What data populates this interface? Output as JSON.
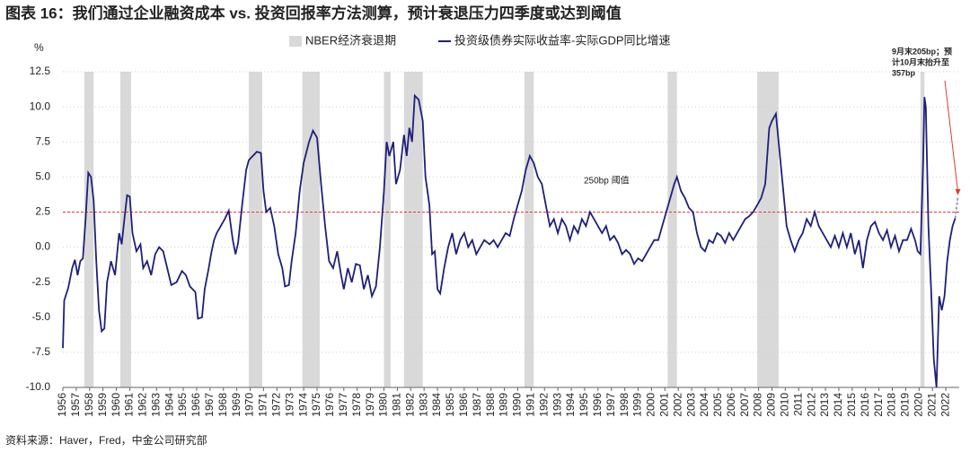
{
  "chart_data": {
    "type": "line",
    "title": "图表 16：我们通过企业融资成本 vs. 投资回报率方法测算，预计衰退压力四季度或达到阈值",
    "y_unit": "%",
    "source": "资料来源：Haver，Fred，中金公司研究部",
    "recession_name": "NBER经济衰退期",
    "recession_color": "#d9d9d9",
    "recessions": [
      [
        1957.6,
        1958.3
      ],
      [
        1960.3,
        1961.1
      ],
      [
        1969.9,
        1970.9
      ],
      [
        1973.9,
        1975.2
      ],
      [
        1980.0,
        1980.5
      ],
      [
        1981.5,
        1982.9
      ],
      [
        1990.5,
        1991.2
      ],
      [
        2001.2,
        2001.9
      ],
      [
        2007.9,
        2009.5
      ],
      [
        2020.1,
        2020.4
      ]
    ],
    "threshold": {
      "value": 2.5,
      "label": "250bp 阈值",
      "color": "#e03c31"
    },
    "annotation": [
      "9月末205bp；预",
      "计10月末抬升至",
      "357bp"
    ],
    "projection": {
      "x": [
        2022.7,
        2022.9
      ],
      "values": [
        2.05,
        3.57
      ],
      "color": "#9a9ab8"
    },
    "xlim": [
      1956,
      2023
    ],
    "xticks": [
      1956,
      1957,
      1958,
      1959,
      1960,
      1961,
      1962,
      1963,
      1964,
      1965,
      1966,
      1967,
      1968,
      1969,
      1970,
      1971,
      1972,
      1973,
      1974,
      1975,
      1976,
      1977,
      1978,
      1979,
      1980,
      1981,
      1982,
      1983,
      1984,
      1985,
      1986,
      1987,
      1988,
      1989,
      1990,
      1991,
      1992,
      1993,
      1994,
      1995,
      1996,
      1997,
      1998,
      1999,
      2000,
      2001,
      2002,
      2003,
      2004,
      2005,
      2006,
      2007,
      2008,
      2009,
      2010,
      2011,
      2012,
      2013,
      2014,
      2015,
      2016,
      2017,
      2018,
      2019,
      2020,
      2021,
      2022
    ],
    "ylim": [
      -10,
      12.5
    ],
    "yticks": [
      12.5,
      {
        "value": 10,
        "label": "10.0"
      },
      7.5,
      {
        "value": 5,
        "label": "5.0"
      },
      2.5,
      {
        "value": 0,
        "label": "0.0"
      },
      -2.5,
      {
        "value": -5,
        "label": "-5.0"
      },
      -7.5,
      {
        "value": -10,
        "label": "-10.0"
      }
    ],
    "grid": true,
    "series": [
      {
        "name": "投资级债券实际收益率-实际GDP同比增速",
        "color": "#1f1f7a",
        "x": [
          1956.0,
          1956.1,
          1956.4,
          1956.7,
          1956.9,
          1957.1,
          1957.3,
          1957.5,
          1957.7,
          1957.9,
          1958.1,
          1958.3,
          1958.5,
          1958.7,
          1958.9,
          1959.1,
          1959.3,
          1959.6,
          1959.9,
          1960.2,
          1960.4,
          1960.6,
          1960.8,
          1961.0,
          1961.2,
          1961.5,
          1961.8,
          1962.0,
          1962.3,
          1962.6,
          1962.9,
          1963.2,
          1963.5,
          1963.8,
          1964.1,
          1964.5,
          1964.9,
          1965.2,
          1965.5,
          1965.9,
          1966.1,
          1966.4,
          1966.6,
          1966.9,
          1967.1,
          1967.3,
          1967.5,
          1967.8,
          1968.1,
          1968.4,
          1968.7,
          1968.9,
          1969.1,
          1969.4,
          1969.7,
          1969.9,
          1970.2,
          1970.5,
          1970.8,
          1971.0,
          1971.2,
          1971.5,
          1971.8,
          1972.1,
          1972.4,
          1972.6,
          1972.9,
          1973.1,
          1973.4,
          1973.7,
          1974.0,
          1974.4,
          1974.7,
          1975.0,
          1975.3,
          1975.6,
          1975.9,
          1976.2,
          1976.5,
          1976.8,
          1977.0,
          1977.3,
          1977.6,
          1977.9,
          1978.2,
          1978.5,
          1978.8,
          1979.1,
          1979.4,
          1979.7,
          1980.0,
          1980.2,
          1980.4,
          1980.7,
          1980.9,
          1981.2,
          1981.5,
          1981.7,
          1981.9,
          1982.1,
          1982.3,
          1982.6,
          1982.9,
          1983.1,
          1983.4,
          1983.6,
          1983.8,
          1984.0,
          1984.2,
          1984.5,
          1984.8,
          1985.1,
          1985.4,
          1985.7,
          1986.0,
          1986.3,
          1986.6,
          1986.9,
          1987.2,
          1987.5,
          1987.9,
          1988.2,
          1988.5,
          1988.8,
          1989.1,
          1989.4,
          1989.7,
          1990.0,
          1990.3,
          1990.6,
          1990.9,
          1991.2,
          1991.5,
          1991.8,
          1992.1,
          1992.4,
          1992.7,
          1993.0,
          1993.3,
          1993.6,
          1993.9,
          1994.2,
          1994.5,
          1994.8,
          1995.1,
          1995.4,
          1995.7,
          1996.0,
          1996.3,
          1996.6,
          1996.9,
          1997.2,
          1997.5,
          1997.8,
          1998.1,
          1998.4,
          1998.7,
          1999.0,
          1999.3,
          1999.6,
          1999.9,
          2000.2,
          2000.5,
          2000.8,
          2001.1,
          2001.4,
          2001.7,
          2001.9,
          2002.2,
          2002.5,
          2002.8,
          2003.1,
          2003.4,
          2003.7,
          2004.0,
          2004.3,
          2004.6,
          2004.9,
          2005.2,
          2005.5,
          2005.8,
          2006.1,
          2006.4,
          2006.7,
          2007.0,
          2007.3,
          2007.6,
          2007.9,
          2008.2,
          2008.5,
          2008.8,
          2009.0,
          2009.3,
          2009.5,
          2009.8,
          2010.1,
          2010.4,
          2010.7,
          2011.0,
          2011.3,
          2011.6,
          2011.9,
          2012.2,
          2012.5,
          2012.8,
          2013.1,
          2013.4,
          2013.7,
          2014.0,
          2014.3,
          2014.6,
          2014.9,
          2015.2,
          2015.5,
          2015.8,
          2016.1,
          2016.4,
          2016.7,
          2017.0,
          2017.3,
          2017.6,
          2017.9,
          2018.2,
          2018.5,
          2018.8,
          2019.1,
          2019.4,
          2019.7,
          2019.9,
          2020.1,
          2020.3,
          2020.4,
          2020.5,
          2020.7,
          2020.9,
          2021.1,
          2021.3,
          2021.5,
          2021.7,
          2021.9,
          2022.1,
          2022.3,
          2022.5,
          2022.7
        ],
        "values": [
          -7.2,
          -3.8,
          -2.9,
          -1.5,
          -0.9,
          -2.0,
          -1.0,
          -0.8,
          2.0,
          5.3,
          5.0,
          3.3,
          -1.0,
          -4.5,
          -6.0,
          -5.8,
          -2.5,
          -1.0,
          -2.0,
          1.0,
          0.2,
          2.0,
          3.7,
          3.6,
          1.0,
          -0.3,
          0.2,
          -1.5,
          -1.0,
          -2.0,
          -0.5,
          0.0,
          -0.3,
          -1.5,
          -2.7,
          -2.5,
          -1.7,
          -2.0,
          -2.8,
          -3.2,
          -5.1,
          -5.0,
          -3.0,
          -1.5,
          -0.4,
          0.5,
          1.0,
          1.5,
          2.0,
          2.6,
          0.5,
          -0.5,
          0.3,
          3.0,
          5.5,
          6.2,
          6.5,
          6.8,
          6.7,
          4.0,
          2.5,
          2.8,
          1.5,
          -0.5,
          -1.5,
          -2.8,
          -2.7,
          -1.0,
          1.0,
          4.0,
          6.0,
          7.5,
          8.3,
          7.8,
          4.5,
          1.5,
          -1.0,
          -1.5,
          -0.3,
          -2.0,
          -3.0,
          -1.5,
          -2.5,
          -1.2,
          -1.3,
          -3.0,
          -2.0,
          -3.5,
          -2.8,
          0.0,
          4.0,
          7.5,
          6.5,
          7.5,
          4.5,
          5.5,
          8.0,
          6.5,
          8.5,
          7.5,
          10.8,
          10.5,
          9.0,
          5.0,
          3.0,
          -0.5,
          -0.3,
          -3.0,
          -3.3,
          -1.5,
          0.0,
          1.0,
          -0.5,
          0.5,
          1.0,
          0.0,
          0.5,
          -0.5,
          0.0,
          0.5,
          0.2,
          0.5,
          0.0,
          0.5,
          1.0,
          0.8,
          2.0,
          3.0,
          4.0,
          5.5,
          6.5,
          6.0,
          5.0,
          4.5,
          3.0,
          1.5,
          2.0,
          1.0,
          2.0,
          1.5,
          0.5,
          1.5,
          1.0,
          2.0,
          1.5,
          2.5,
          2.0,
          1.5,
          1.0,
          1.5,
          0.5,
          0.8,
          0.3,
          -0.5,
          -0.2,
          -0.5,
          -1.2,
          -0.8,
          -1.0,
          -0.5,
          0.0,
          0.5,
          0.5,
          1.5,
          2.5,
          3.5,
          4.5,
          5.0,
          4.0,
          3.5,
          2.8,
          2.5,
          1.0,
          0.0,
          -0.3,
          0.5,
          0.3,
          1.0,
          0.8,
          0.3,
          1.0,
          0.5,
          1.0,
          1.5,
          2.0,
          2.2,
          2.5,
          3.0,
          3.5,
          4.5,
          8.5,
          9.0,
          9.5,
          7.5,
          4.5,
          1.5,
          0.5,
          -0.3,
          0.5,
          1.0,
          2.0,
          1.5,
          2.5,
          1.5,
          1.0,
          0.5,
          0.0,
          0.8,
          0.0,
          1.0,
          0.0,
          1.0,
          -0.5,
          0.5,
          -1.5,
          0.5,
          1.5,
          1.8,
          1.0,
          0.5,
          1.2,
          0.0,
          0.8,
          -0.3,
          0.5,
          0.5,
          1.3,
          0.5,
          -0.3,
          -0.5,
          6.0,
          10.7,
          10.0,
          1.5,
          -3.0,
          -8.0,
          -10.0,
          -3.5,
          -4.5,
          -3.5,
          -1.0,
          0.5,
          1.5,
          2.05
        ]
      }
    ]
  }
}
